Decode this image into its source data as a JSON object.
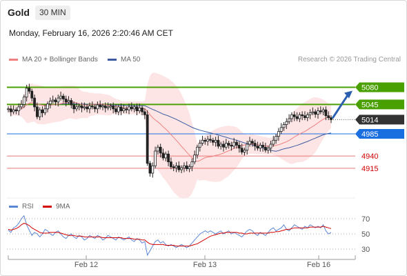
{
  "header": {
    "instrument": "Gold",
    "timeframe": "30 MIN",
    "datetime": "Monday, February 16, 2026 2:20:46 AM CET",
    "credit": "Research © 2026 Trading Central"
  },
  "legend": {
    "ma20": "MA 20 + Bollinger Bands",
    "ma50": "MA 50",
    "rsi": "RSI",
    "rsi_ma": "9MA"
  },
  "colors": {
    "bollinger_fill": "#fde0e0",
    "ma20": "#f08080",
    "ma50": "#3b5ba0",
    "resistance": "#4aa000",
    "support": "#e87878",
    "pivot": "#1a6fe0",
    "last_price": "#333333",
    "rsi": "#5b86d6",
    "rsi_ma": "#d40000"
  },
  "chart_data": [
    {
      "type": "candlestick",
      "panel": "price",
      "x_labels": [
        "Feb 12",
        "Feb 13",
        "Feb 16"
      ],
      "ylim": [
        4860,
        5120
      ],
      "levels": [
        {
          "value": 5080,
          "label": "5080",
          "kind": "resistance"
        },
        {
          "value": 5045,
          "label": "5045",
          "kind": "resistance"
        },
        {
          "value": 5014,
          "label": "5014",
          "kind": "last"
        },
        {
          "value": 4985,
          "label": "4985",
          "kind": "pivot"
        },
        {
          "value": 4940,
          "label": "4940",
          "kind": "support"
        },
        {
          "value": 4915,
          "label": "4915",
          "kind": "support"
        }
      ],
      "closes": [
        5036,
        5030,
        5034,
        5032,
        5040,
        5045,
        5060,
        5078,
        5072,
        5058,
        5040,
        5020,
        5034,
        5028,
        5036,
        5046,
        5052,
        5054,
        5050,
        5058,
        5062,
        5056,
        5050,
        5053,
        5044,
        5036,
        5040,
        5042,
        5038,
        5040,
        5036,
        5042,
        5040,
        5036,
        5044,
        5040,
        5042,
        5038,
        5040,
        5042,
        5036,
        5030,
        5040,
        5032,
        5036,
        5034,
        5040,
        5036,
        5040,
        5032,
        5038,
        5030,
        5024,
        4925,
        4905,
        4920,
        4950,
        4958,
        4946,
        4936,
        4944,
        4928,
        4918,
        4916,
        4920,
        4912,
        4916,
        4920,
        4914,
        4918,
        4928,
        4942,
        4958,
        4966,
        4972,
        4970,
        4974,
        4972,
        4968,
        4972,
        4960,
        4964,
        4958,
        4966,
        4962,
        4960,
        4968,
        4962,
        4956,
        4948,
        4952,
        4964,
        4970,
        4966,
        4960,
        4956,
        4962,
        4958,
        4952,
        4956,
        4964,
        4972,
        4980,
        4990,
        4998,
        5004,
        5010,
        5016,
        5024,
        5020,
        5016,
        5024,
        5022,
        5018,
        5024,
        5028,
        5030,
        5025,
        5032,
        5030,
        5034,
        5022,
        5018,
        5014
      ],
      "rsi": {
        "ylim": [
          20,
          80
        ],
        "levels": [
          70,
          50,
          30
        ],
        "values": [
          55,
          52,
          58,
          60,
          64,
          70,
          74,
          62,
          55,
          48,
          52,
          50,
          46,
          50,
          56,
          54,
          50,
          48,
          52,
          54,
          50,
          46,
          44,
          48,
          50,
          46,
          44,
          48,
          46,
          42,
          44,
          48,
          46,
          44,
          48,
          46,
          42,
          44,
          48,
          46,
          44,
          42,
          46,
          44,
          42,
          44,
          46,
          42,
          40,
          44,
          42,
          38,
          40,
          22,
          28,
          34,
          40,
          42,
          38,
          40,
          36,
          34,
          36,
          34,
          32,
          34,
          36,
          34,
          32,
          34,
          38,
          42,
          46,
          50,
          52,
          54,
          52,
          54,
          52,
          50,
          52,
          54,
          50,
          52,
          54,
          50,
          52,
          50,
          48,
          46,
          50,
          54,
          56,
          54,
          50,
          48,
          52,
          50,
          48,
          52,
          56,
          58,
          54,
          56,
          58,
          62,
          56,
          54,
          58,
          62,
          60,
          58,
          56,
          60,
          58,
          62,
          60,
          58,
          60,
          58,
          62,
          54,
          50,
          52
        ],
        "ma_values": [
          56,
          55,
          56,
          57,
          59,
          62,
          64,
          63,
          61,
          58,
          56,
          54,
          52,
          51,
          51,
          51,
          52,
          52,
          52,
          52,
          51,
          50,
          49,
          48,
          48,
          48,
          47,
          47,
          47,
          46,
          46,
          46,
          46,
          46,
          46,
          46,
          45,
          45,
          45,
          45,
          45,
          45,
          45,
          45,
          44,
          44,
          44,
          44,
          43,
          43,
          43,
          42,
          42,
          39,
          37,
          36,
          36,
          36,
          36,
          36,
          35,
          35,
          35,
          35,
          34,
          34,
          34,
          34,
          34,
          34,
          35,
          36,
          37,
          39,
          41,
          43,
          45,
          47,
          48,
          49,
          50,
          51,
          51,
          52,
          52,
          52,
          52,
          52,
          51,
          51,
          50,
          50,
          51,
          51,
          51,
          51,
          51,
          51,
          51,
          51,
          52,
          52,
          53,
          53,
          54,
          55,
          56,
          56,
          57,
          58,
          58,
          58,
          58,
          58,
          58,
          59,
          59,
          59,
          59,
          59,
          60,
          59,
          58,
          57
        ]
      }
    }
  ]
}
